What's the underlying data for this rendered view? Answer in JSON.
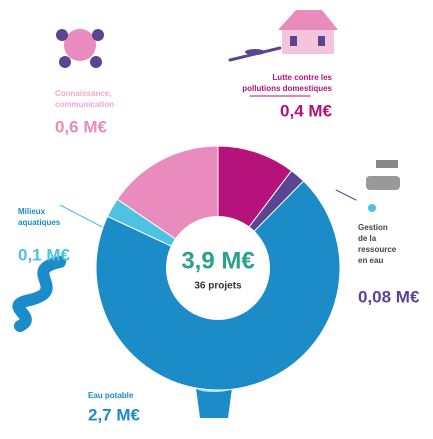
{
  "chart_data": {
    "type": "donut",
    "center_title": "3,9 M€",
    "center_subtitle": "36 projets",
    "categories": [
      "Lutte contre les\npollutions domestiques",
      "Gestion\nde la\nressource\nen eau",
      "Eau potable",
      "Milieux\naquatiques",
      "Connaissance,\ncommunication"
    ],
    "values": [
      0.4,
      0.08,
      2.7,
      0.1,
      0.6
    ],
    "value_labels": [
      "0,4 M€",
      "0,08 M€",
      "2,7 M€",
      "0,1 M€",
      "0,6 M€"
    ],
    "colors": [
      "#b5127c",
      "#5b4490",
      "#1b8cc8",
      "#4fc1e3",
      "#ea8bbd"
    ]
  }
}
